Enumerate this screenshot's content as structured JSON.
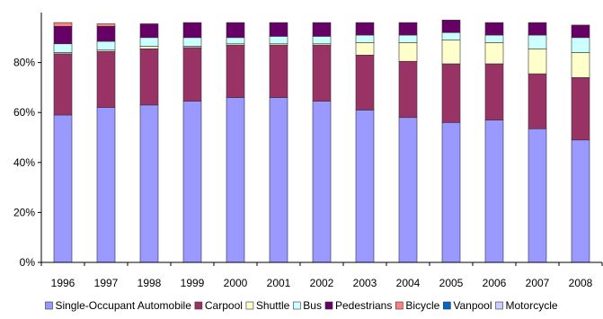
{
  "chart_data": {
    "type": "bar",
    "stacked": true,
    "categories": [
      "1996",
      "1997",
      "1998",
      "1999",
      "2000",
      "2001",
      "2002",
      "2003",
      "2004",
      "2005",
      "2006",
      "2007",
      "2008"
    ],
    "series": [
      {
        "name": "Single-Occupant Automobile",
        "color": "#9999ff",
        "values": [
          59,
          62,
          63,
          64.5,
          66,
          66,
          64.5,
          61,
          58,
          56,
          57,
          53.5,
          49
        ]
      },
      {
        "name": "Carpool",
        "color": "#993366",
        "values": [
          24.5,
          22.5,
          22.5,
          21.5,
          21,
          21,
          22.5,
          22,
          22.5,
          23.5,
          22.5,
          22,
          25
        ]
      },
      {
        "name": "Shuttle",
        "color": "#ffffcc",
        "values": [
          0.5,
          0.5,
          1,
          0.5,
          0.5,
          0.5,
          0.5,
          5,
          7.5,
          9.5,
          8.5,
          10,
          10
        ]
      },
      {
        "name": "Bus",
        "color": "#ccffff",
        "values": [
          3.5,
          3.5,
          3.5,
          3.5,
          2.5,
          3,
          3,
          3,
          3,
          3,
          3,
          5.5,
          6
        ]
      },
      {
        "name": "Pedestrians",
        "color": "#660066",
        "values": [
          7,
          6,
          5.5,
          6,
          6,
          5.5,
          5.5,
          5,
          5,
          5,
          5,
          5,
          5
        ]
      },
      {
        "name": "Bicycle",
        "color": "#ff8080",
        "values": [
          1.5,
          1,
          0,
          0,
          0,
          0,
          0,
          0,
          0,
          0,
          0,
          0,
          0
        ]
      },
      {
        "name": "Vanpool",
        "color": "#0066cc",
        "values": [
          0,
          0,
          0,
          0,
          0,
          0,
          0,
          0,
          0,
          0,
          0,
          0,
          0
        ]
      },
      {
        "name": "Motorcycle",
        "color": "#ccccff",
        "values": [
          0,
          0,
          0,
          0,
          0,
          0,
          0,
          0,
          0,
          0,
          0,
          0,
          0
        ]
      }
    ],
    "ylim": [
      0,
      100
    ],
    "yticks": [
      0,
      20,
      40,
      60,
      80
    ],
    "ytick_labels": [
      "0%",
      "20%",
      "40%",
      "60%",
      "80%"
    ],
    "title": "",
    "xlabel": "",
    "ylabel": "",
    "grid": false,
    "legend_position": "bottom"
  }
}
